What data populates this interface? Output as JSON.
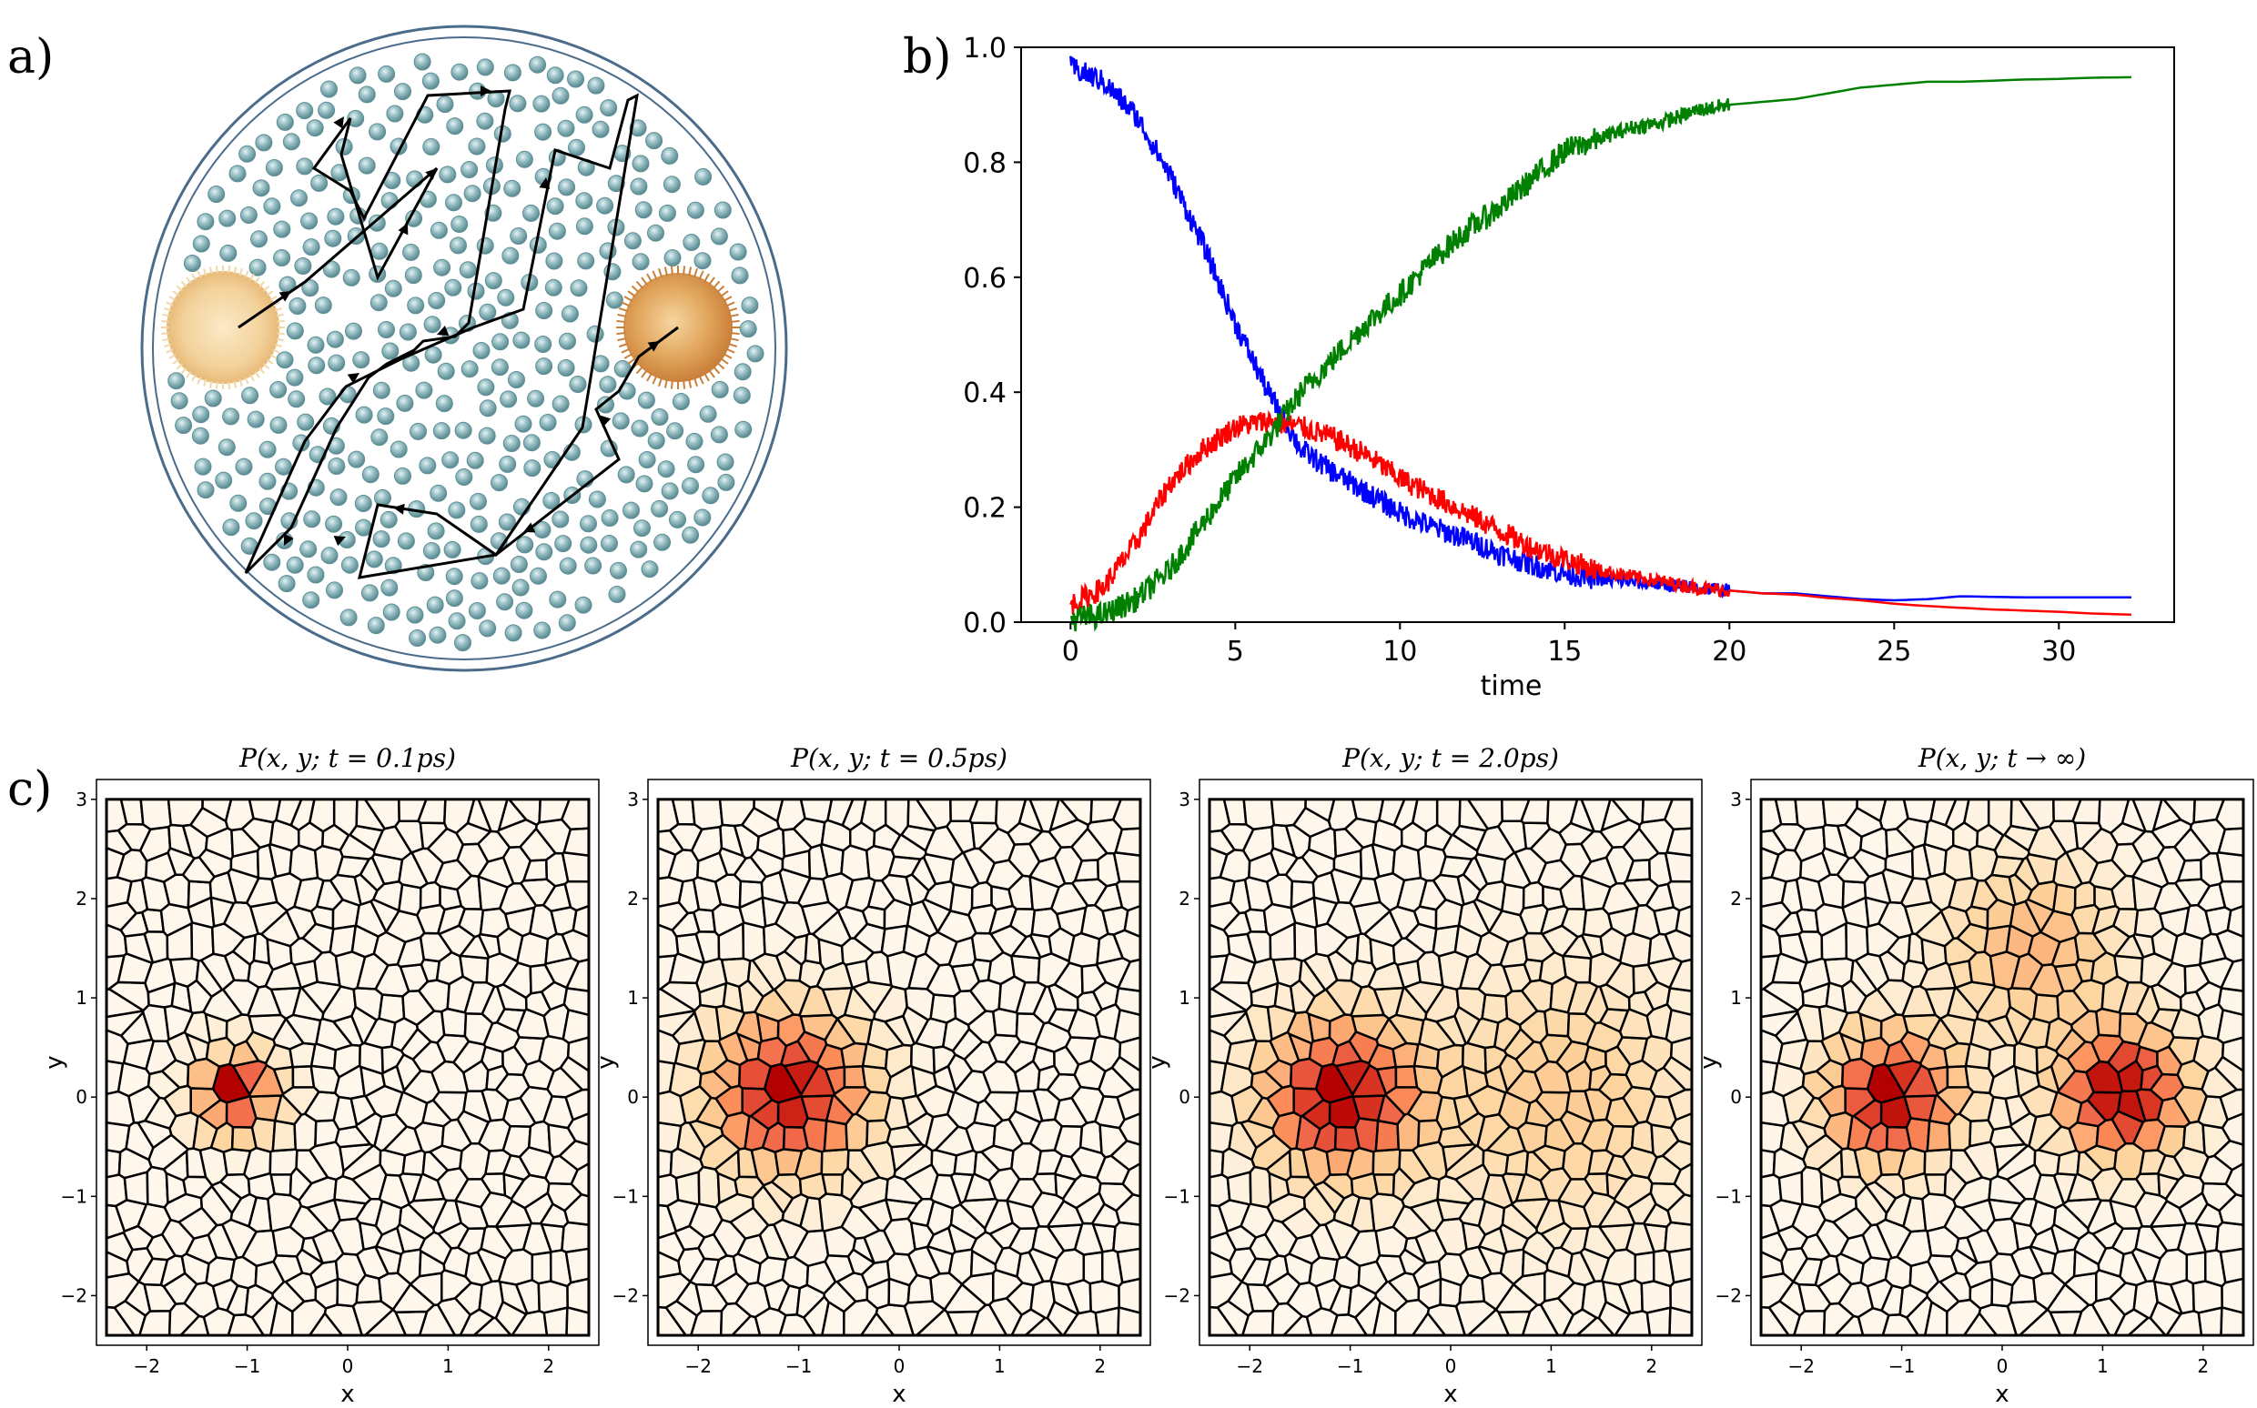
{
  "panels": {
    "a": "a)",
    "b": "b)",
    "c": "c)"
  },
  "colors": {
    "blue": "#0000ff",
    "red": "#ff0000",
    "green": "#008000",
    "membrane": "#4a6c8a",
    "molecule": "#7aaab0"
  },
  "illustration": {
    "description_icons": [
      "membrane-circle-icon",
      "molecule-sphere-icon",
      "pollen-grain-icon",
      "random-walk-path-icon"
    ]
  },
  "chart_data": [
    {
      "type": "line",
      "xlabel": "time",
      "ylabel": "",
      "xlim": [
        -1.5,
        33.5
      ],
      "ylim": [
        0.0,
        1.0
      ],
      "xticks": [
        "0",
        "5",
        "10",
        "15",
        "20",
        "25",
        "30"
      ],
      "yticks": [
        "0.0",
        "0.2",
        "0.4",
        "0.6",
        "0.8",
        "1.0"
      ],
      "legend": "none",
      "grid": false,
      "series": [
        {
          "color": "#0000ff",
          "x": [
            0,
            1,
            2,
            3,
            4,
            5,
            6,
            7,
            8,
            9,
            10,
            11,
            12,
            13,
            14,
            15,
            16,
            17,
            18,
            19,
            20,
            21,
            22,
            23,
            24,
            25,
            26,
            27,
            28,
            29,
            30,
            31,
            32.2
          ],
          "y": [
            0.965,
            0.94,
            0.88,
            0.78,
            0.66,
            0.52,
            0.4,
            0.3,
            0.26,
            0.225,
            0.19,
            0.165,
            0.145,
            0.12,
            0.1,
            0.085,
            0.075,
            0.07,
            0.065,
            0.06,
            0.055,
            0.05,
            0.05,
            0.045,
            0.04,
            0.038,
            0.04,
            0.045,
            0.044,
            0.043,
            0.043,
            0.043,
            0.043
          ]
        },
        {
          "color": "#ff0000",
          "x": [
            0,
            1,
            2,
            3,
            4,
            5,
            6,
            7,
            8,
            9,
            10,
            11,
            12,
            13,
            14,
            15,
            16,
            17,
            18,
            19,
            20,
            21,
            22,
            23,
            24,
            25,
            26,
            27,
            28,
            29,
            30,
            31,
            32.2
          ],
          "y": [
            0.03,
            0.06,
            0.14,
            0.24,
            0.3,
            0.34,
            0.35,
            0.34,
            0.32,
            0.29,
            0.25,
            0.22,
            0.19,
            0.16,
            0.13,
            0.11,
            0.09,
            0.08,
            0.07,
            0.06,
            0.055,
            0.05,
            0.048,
            0.042,
            0.038,
            0.032,
            0.028,
            0.025,
            0.022,
            0.02,
            0.018,
            0.015,
            0.013
          ]
        },
        {
          "color": "#008000",
          "x": [
            0,
            1,
            2,
            3,
            4,
            5,
            6,
            7,
            8,
            9,
            10,
            11,
            12,
            13,
            14,
            15,
            16,
            17,
            18,
            19,
            20,
            21,
            22,
            23,
            24,
            25,
            26,
            27,
            28,
            29,
            30,
            31,
            32.2
          ],
          "y": [
            0.005,
            0.012,
            0.04,
            0.09,
            0.17,
            0.25,
            0.32,
            0.4,
            0.46,
            0.52,
            0.57,
            0.63,
            0.68,
            0.72,
            0.77,
            0.82,
            0.84,
            0.86,
            0.87,
            0.89,
            0.9,
            0.905,
            0.91,
            0.92,
            0.93,
            0.935,
            0.94,
            0.94,
            0.942,
            0.944,
            0.945,
            0.947,
            0.948
          ]
        }
      ]
    },
    {
      "type": "heatmap",
      "title": "P(x, y; t = 0.1ps)",
      "xlabel": "x",
      "ylabel": "y",
      "xlim": [
        -2.5,
        2.5
      ],
      "ylim": [
        -2.5,
        3.2
      ],
      "xticks": [
        "−2",
        "−1",
        "0",
        "1",
        "2"
      ],
      "yticks": [
        "−2",
        "−1",
        "0",
        "1",
        "2",
        "3"
      ],
      "colormap": "OrRd",
      "peaks": [
        {
          "x": -1.1,
          "y": 0.05,
          "amplitude": 1.0,
          "sigma": 0.28
        }
      ]
    },
    {
      "type": "heatmap",
      "title": "P(x, y; t = 0.5ps)",
      "xlabel": "x",
      "ylabel": "y",
      "xlim": [
        -2.5,
        2.5
      ],
      "ylim": [
        -2.5,
        3.2
      ],
      "xticks": [
        "−2",
        "−1",
        "0",
        "1",
        "2"
      ],
      "yticks": [
        "−2",
        "−1",
        "0",
        "1",
        "2",
        "3"
      ],
      "colormap": "OrRd",
      "peaks": [
        {
          "x": -1.1,
          "y": 0.05,
          "amplitude": 1.0,
          "sigma": 0.55
        }
      ]
    },
    {
      "type": "heatmap",
      "title": "P(x, y; t = 2.0ps)",
      "xlabel": "x",
      "ylabel": "y",
      "xlim": [
        -2.5,
        2.5
      ],
      "ylim": [
        -2.5,
        3.2
      ],
      "xticks": [
        "−2",
        "−1",
        "0",
        "1",
        "2"
      ],
      "yticks": [
        "−2",
        "−1",
        "0",
        "1",
        "2",
        "3"
      ],
      "colormap": "OrRd",
      "peaks": [
        {
          "x": -1.1,
          "y": 0.0,
          "amplitude": 1.0,
          "sigma": 0.55
        },
        {
          "x": 1.1,
          "y": 0.0,
          "amplitude": 0.35,
          "sigma": 0.9
        }
      ]
    },
    {
      "type": "heatmap",
      "title": "P(x, y; t → ∞)",
      "xlabel": "x",
      "ylabel": "y",
      "xlim": [
        -2.5,
        2.5
      ],
      "ylim": [
        -2.5,
        3.2
      ],
      "xticks": [
        "−2",
        "−1",
        "0",
        "1",
        "2"
      ],
      "yticks": [
        "−2",
        "−1",
        "0",
        "1",
        "2",
        "3"
      ],
      "colormap": "OrRd",
      "peaks": [
        {
          "x": -1.1,
          "y": 0.0,
          "amplitude": 1.0,
          "sigma": 0.45
        },
        {
          "x": 1.2,
          "y": 0.05,
          "amplitude": 1.0,
          "sigma": 0.45
        },
        {
          "x": 0.3,
          "y": 1.5,
          "amplitude": 0.45,
          "sigma": 0.6
        }
      ]
    }
  ]
}
